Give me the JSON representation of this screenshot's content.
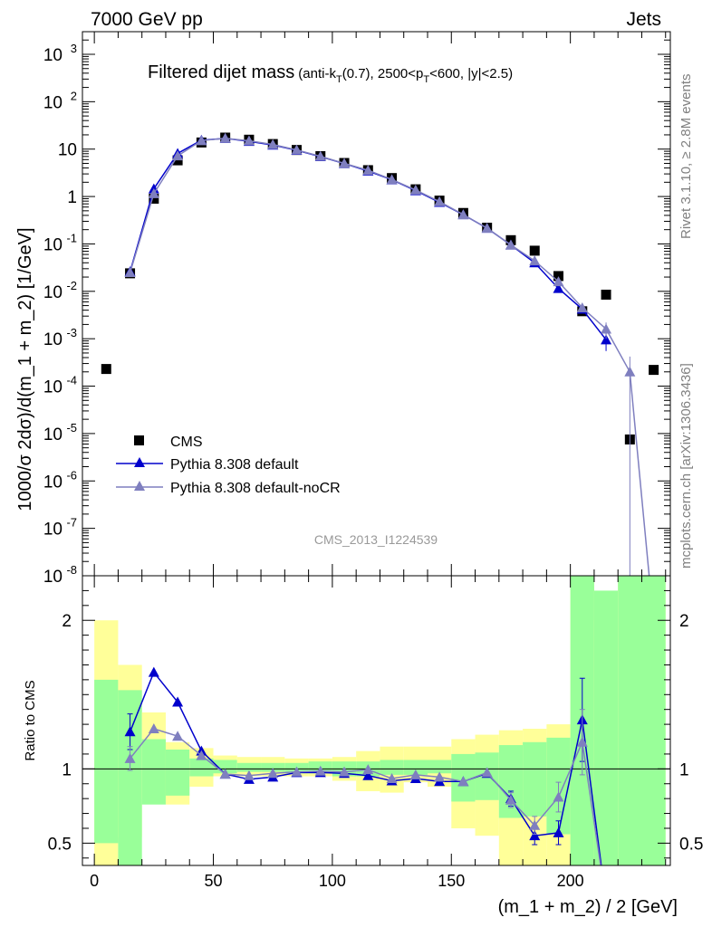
{
  "header": {
    "left": "7000 GeV pp",
    "right": "Jets"
  },
  "side_labels": {
    "rivet": "Rivet 3.1.10, ≥ 2.8M events",
    "mcplots": "mcplots.cern.ch [arXiv:1306.3436]"
  },
  "chart_data": {
    "type": "line",
    "title": "Filtered dijet mass",
    "subtitle": "(anti-k_T(0.7), 2500<p_T<600, |y|<2.5)",
    "watermark": "CMS_2013_I1224539",
    "xlabel": "(m_1 + m_2) / 2 [GeV]",
    "ylabel": "1000/σ 2dσ)/d(m_1 + m_2) [1/GeV]",
    "ratio_ylabel": "Ratio to CMS",
    "xlim": [
      -5,
      242
    ],
    "ylim": [
      1e-08,
      3000
    ],
    "ratio_ylim": [
      0.35,
      2.3
    ],
    "log_y": true,
    "x_ticks": [
      0,
      50,
      100,
      150,
      200
    ],
    "y_ticks": [
      {
        "v": 1e-08,
        "label": "10",
        "exp": "-8"
      },
      {
        "v": 1e-07,
        "label": "10",
        "exp": "-7"
      },
      {
        "v": 1e-06,
        "label": "10",
        "exp": "-6"
      },
      {
        "v": 1e-05,
        "label": "10",
        "exp": "-5"
      },
      {
        "v": 0.0001,
        "label": "10",
        "exp": "-4"
      },
      {
        "v": 0.001,
        "label": "10",
        "exp": "-3"
      },
      {
        "v": 0.01,
        "label": "10",
        "exp": "-2"
      },
      {
        "v": 0.1,
        "label": "10",
        "exp": "-1"
      },
      {
        "v": 1,
        "label": "1",
        "exp": ""
      },
      {
        "v": 10,
        "label": "10",
        "exp": ""
      },
      {
        "v": 100,
        "label": "10",
        "exp": "2"
      },
      {
        "v": 1000,
        "label": "10",
        "exp": "3"
      }
    ],
    "ratio_ticks": [
      {
        "v": 0.5,
        "label": "0.5"
      },
      {
        "v": 1,
        "label": "1"
      },
      {
        "v": 2,
        "label": "2"
      }
    ],
    "legend": {
      "position": "lower-left",
      "entries": [
        "CMS",
        "Pythia 8.308 default",
        "Pythia 8.308 default-noCR"
      ]
    },
    "data": {
      "name": "CMS",
      "x": [
        5,
        15,
        25,
        35,
        45,
        55,
        65,
        75,
        85,
        95,
        105,
        115,
        125,
        135,
        145,
        155,
        165,
        175,
        185,
        195,
        205,
        215,
        225,
        235
      ],
      "y": [
        0.00023,
        0.024,
        0.9,
        5.8,
        13.8,
        17.5,
        15.8,
        12.8,
        9.6,
        7.1,
        5.1,
        3.6,
        2.45,
        1.42,
        0.82,
        0.45,
        0.22,
        0.12,
        0.072,
        0.021,
        0.0038,
        0.0085,
        7.5e-06,
        0.00022
      ]
    },
    "series": [
      {
        "name": "Pythia 8.308 default",
        "color": "#0000cc",
        "x": [
          15,
          25,
          35,
          45,
          55,
          65,
          75,
          85,
          95,
          105,
          115,
          125,
          135,
          145,
          155,
          165,
          175,
          185,
          195,
          205,
          215
        ],
        "y": [
          0.026,
          1.45,
          8.1,
          15.4,
          16.8,
          14.6,
          12.2,
          9.45,
          6.95,
          4.95,
          3.45,
          2.25,
          1.33,
          0.755,
          0.415,
          0.214,
          0.095,
          0.04,
          0.0115,
          0.0042,
          0.00095
        ],
        "y_err": [
          0,
          0,
          0,
          0,
          0,
          0,
          0,
          0,
          0,
          0,
          0,
          0,
          0,
          0,
          0,
          0,
          0,
          0,
          0,
          0,
          0.0004
        ],
        "ratio": [
          1.25,
          1.65,
          1.45,
          1.12,
          0.965,
          0.93,
          0.945,
          0.975,
          0.975,
          0.97,
          0.955,
          0.92,
          0.935,
          0.915,
          0.915,
          0.97,
          0.8,
          0.55,
          0.57,
          1.33,
          0.1
        ],
        "ratio_err": [
          0.12,
          0,
          0,
          0,
          0,
          0,
          0,
          0,
          0,
          0,
          0,
          0,
          0,
          0,
          0,
          0,
          0.05,
          0.06,
          0.08,
          0.28,
          0
        ]
      },
      {
        "name": "Pythia 8.308 default-noCR",
        "color": "#7f7fbf",
        "x": [
          15,
          25,
          35,
          45,
          55,
          65,
          75,
          85,
          95,
          105,
          115,
          125,
          135,
          145,
          155,
          165,
          175,
          185,
          195,
          205,
          215,
          225,
          235
        ],
        "y": [
          0.025,
          1.15,
          7.2,
          15.1,
          16.9,
          15.0,
          12.5,
          9.6,
          7.05,
          5.0,
          3.58,
          2.28,
          1.37,
          0.78,
          0.415,
          0.215,
          0.095,
          0.044,
          0.016,
          0.0045,
          0.0016,
          0.0002,
          1e-09
        ],
        "y_err": [
          0,
          0,
          0,
          0,
          0,
          0,
          0,
          0,
          0,
          0,
          0,
          0,
          0,
          0,
          0,
          0,
          0,
          0,
          0,
          0,
          0.0006,
          0.00022,
          0
        ],
        "ratio": [
          1.07,
          1.27,
          1.22,
          1.09,
          0.965,
          0.955,
          0.97,
          0.98,
          0.985,
          0.98,
          0.995,
          0.935,
          0.96,
          0.945,
          0.915,
          0.975,
          0.79,
          0.62,
          0.81,
          1.18,
          0.1
        ],
        "ratio_err": [
          0.08,
          0,
          0,
          0,
          0,
          0,
          0,
          0,
          0,
          0,
          0,
          0,
          0,
          0,
          0,
          0,
          0.05,
          0.06,
          0.1,
          0.22,
          0
        ]
      }
    ],
    "uncertainty_bands": {
      "edges": [
        0,
        10,
        20,
        30,
        40,
        50,
        60,
        70,
        80,
        90,
        100,
        110,
        120,
        130,
        140,
        150,
        160,
        170,
        180,
        190,
        200,
        210,
        220,
        240
      ],
      "yellow_lo": [
        0.3,
        0.54,
        0.8,
        0.76,
        0.88,
        0.95,
        0.95,
        0.95,
        0.95,
        0.95,
        0.92,
        0.85,
        0.84,
        0.91,
        0.88,
        0.6,
        0.55,
        0.3,
        0.3,
        0.35,
        0.3,
        0.3,
        0.3
      ],
      "yellow_hi": [
        2.0,
        1.7,
        1.38,
        1.18,
        1.14,
        1.09,
        1.08,
        1.08,
        1.07,
        1.07,
        1.08,
        1.12,
        1.15,
        1.15,
        1.15,
        1.2,
        1.23,
        1.26,
        1.27,
        1.3,
        2.3,
        2.0,
        2.3
      ],
      "green_lo": [
        0.5,
        0.3,
        0.76,
        0.82,
        0.95,
        0.97,
        0.98,
        0.98,
        0.97,
        0.97,
        0.95,
        0.95,
        0.96,
        0.96,
        0.97,
        0.78,
        0.79,
        0.67,
        0.68,
        0.56,
        0.3,
        0.3,
        0.3
      ],
      "green_hi": [
        1.6,
        1.53,
        1.2,
        1.13,
        1.07,
        1.06,
        1.04,
        1.04,
        1.04,
        1.05,
        1.05,
        1.05,
        1.06,
        1.06,
        1.06,
        1.1,
        1.11,
        1.16,
        1.18,
        1.21,
        2.3,
        2.2,
        2.3
      ]
    }
  }
}
